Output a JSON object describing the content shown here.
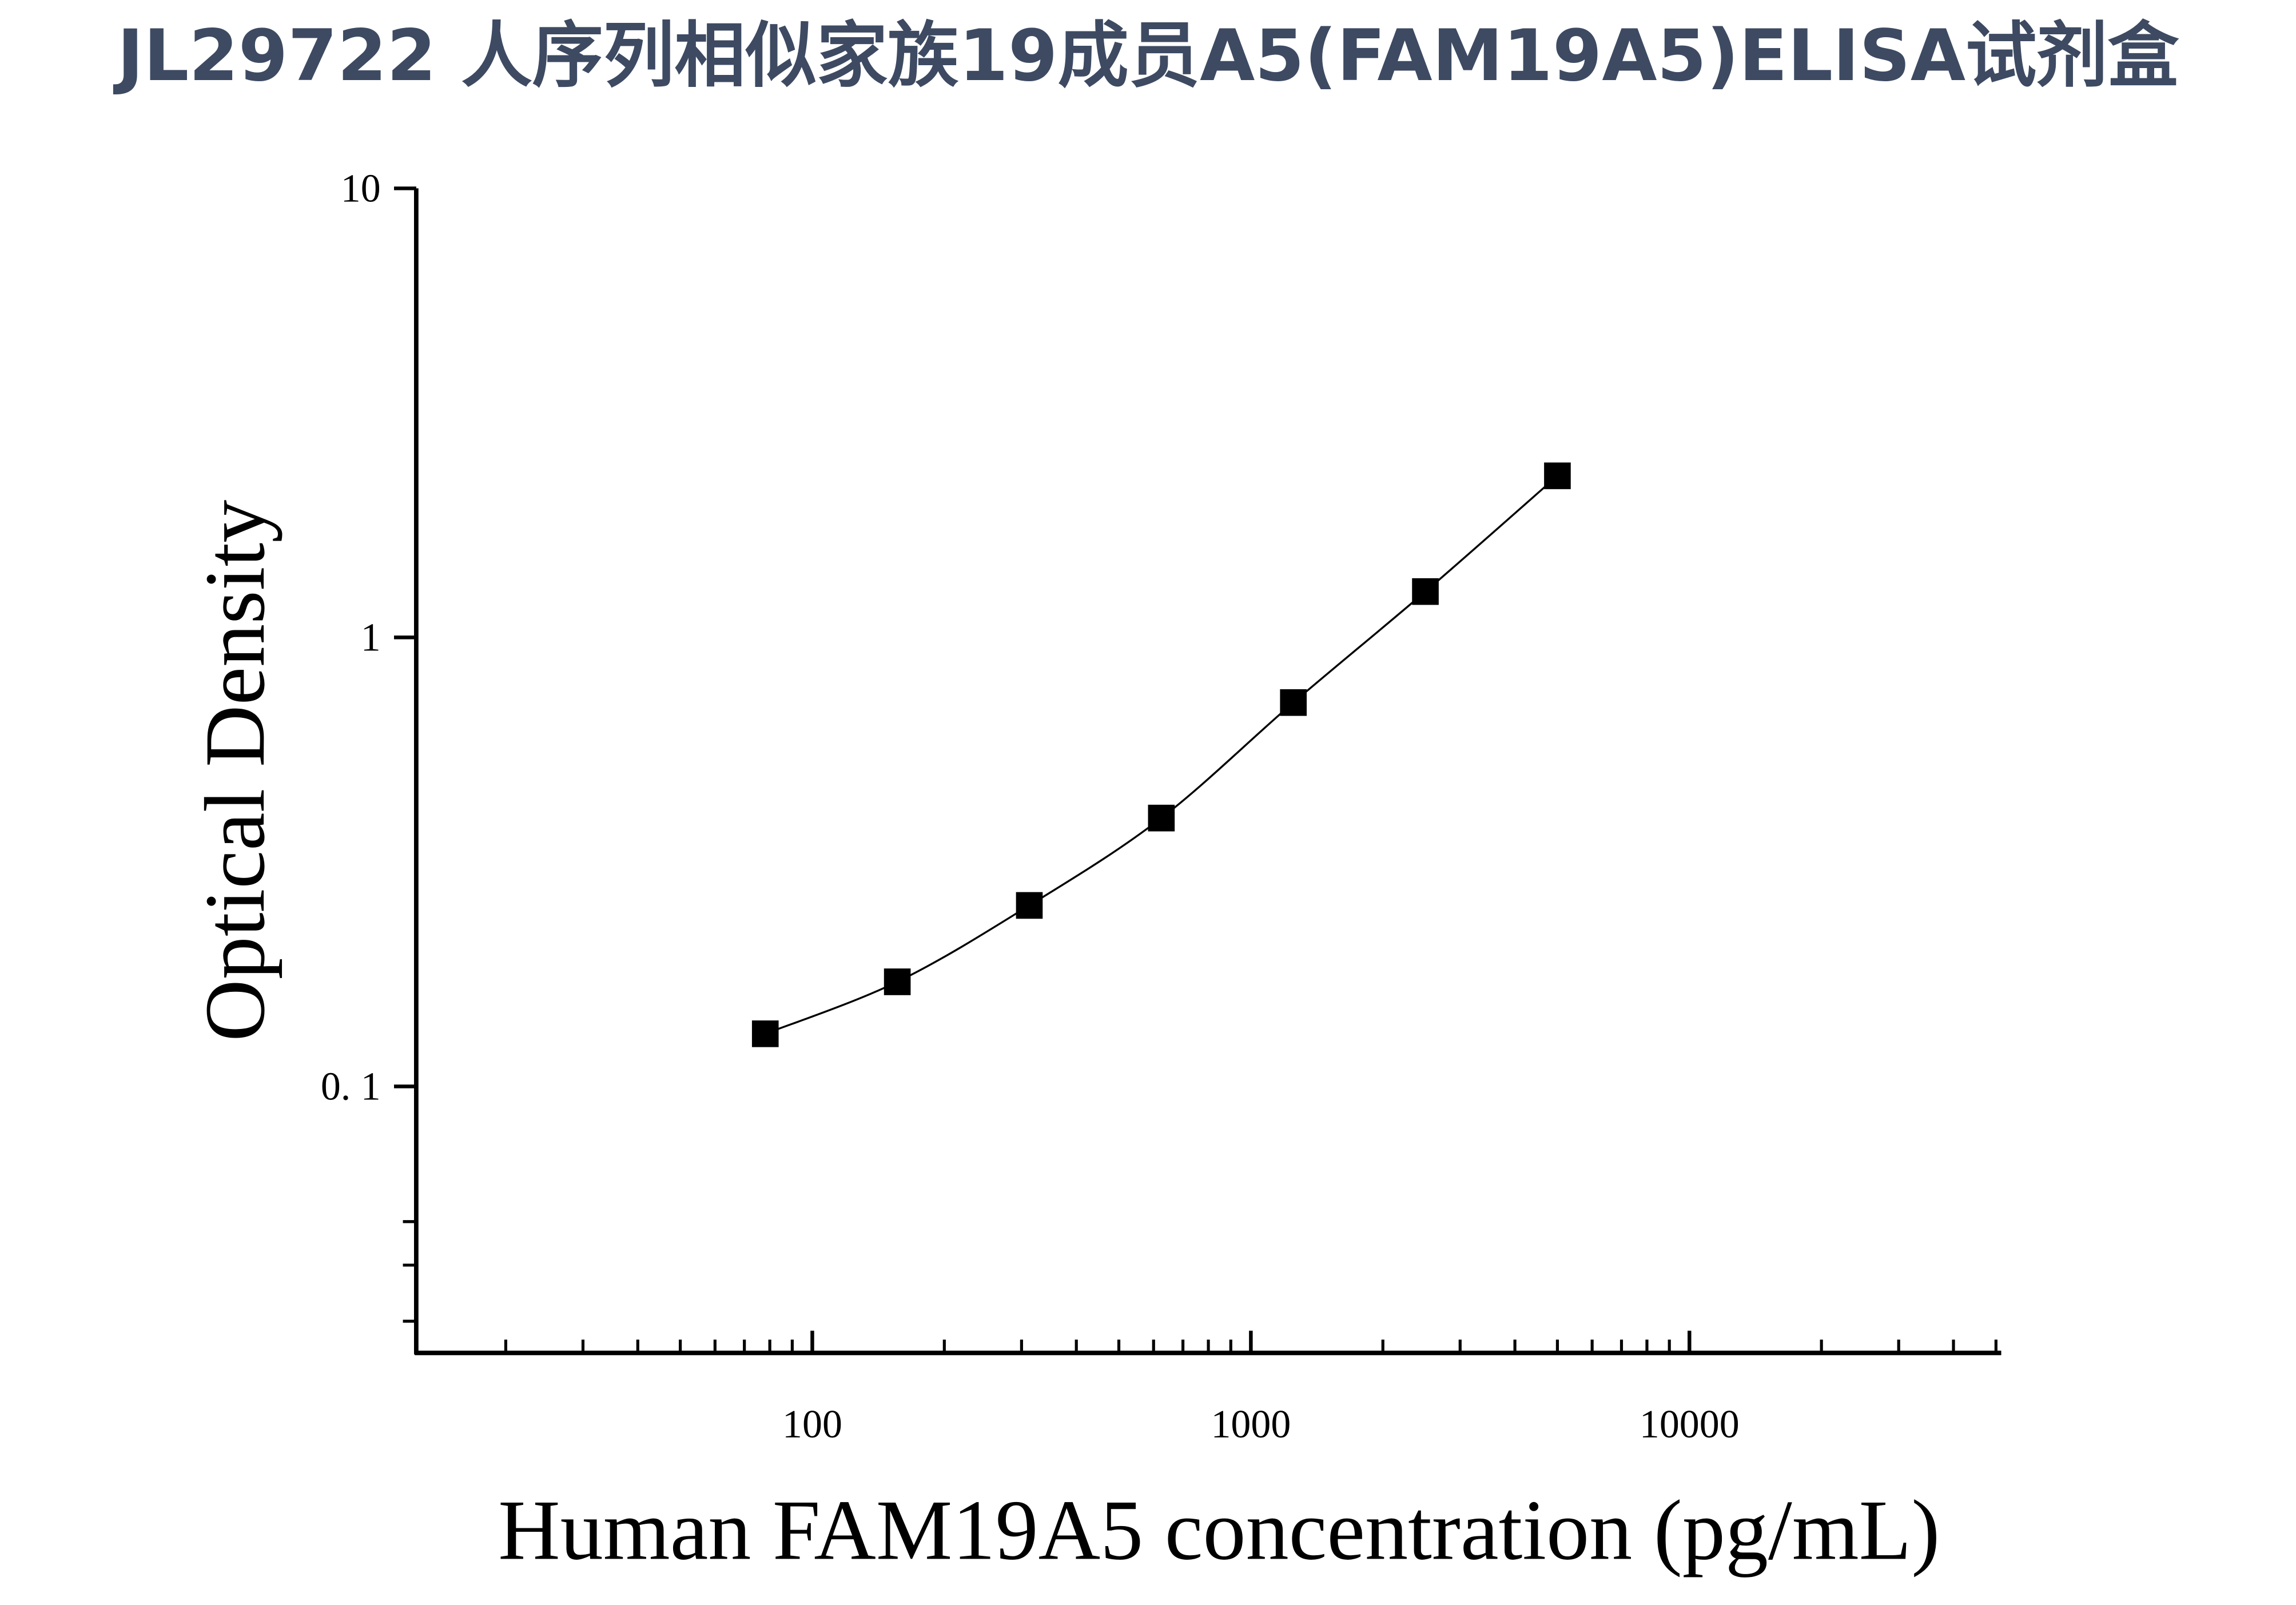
{
  "chart_data": {
    "type": "scatter",
    "title": "JL29722 人序列相似家族19成员A5(FAM19A5)ELISA试剂盒",
    "x_label": "Human FAM19A5 concentration (pg/mL)",
    "y_label": "Optical Density",
    "x": [
      78.125,
      156.25,
      312.5,
      625,
      1250,
      2500,
      5000
    ],
    "series": [
      {
        "color": "#000000",
        "values": [
          0.131,
          0.171,
          0.253,
          0.396,
          0.716,
          1.265,
          2.29
        ]
      }
    ],
    "xscale": "log",
    "yscale": "log",
    "xlim": [
      12.5,
      51000
    ],
    "ylim": [
      0.0255,
      10
    ],
    "xticks": [
      100,
      1000,
      10000
    ],
    "xminor_ticks": [
      20,
      30,
      40,
      50,
      60,
      70,
      80,
      90,
      200,
      300,
      400,
      500,
      600,
      700,
      800,
      900,
      2000,
      3000,
      4000,
      5000,
      6000,
      7000,
      8000,
      9000,
      20000,
      30000,
      40000,
      50000
    ],
    "yticks": [
      {
        "value": 0.1,
        "label": "0. 1"
      },
      1,
      10
    ],
    "yminor_ticks": [
      0.03,
      0.04,
      0.05
    ],
    "fit_curve": true,
    "grid": false
  }
}
